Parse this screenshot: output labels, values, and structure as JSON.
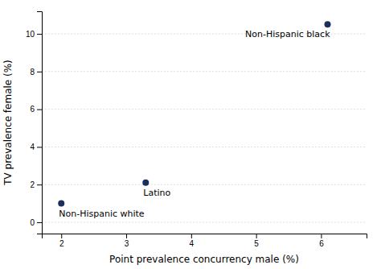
{
  "chart_data": {
    "type": "scatter",
    "xlabel": "Point prevalence concurrency male (%)",
    "ylabel": "TV prevalence female (%)",
    "x": [
      2.0,
      3.3,
      6.1
    ],
    "values": [
      1.0,
      2.1,
      10.5
    ],
    "annotations": [
      "Non-Hispanic white",
      "Latino",
      "Non-Hispanic black"
    ],
    "color": "#1a2f5a",
    "xlim": [
      1.7,
      6.7
    ],
    "ylim": [
      -0.6,
      11.2
    ],
    "xticks": [
      2,
      3,
      4,
      5,
      6
    ],
    "yticks": [
      0,
      2,
      4,
      6,
      8,
      10
    ],
    "grid": true
  }
}
